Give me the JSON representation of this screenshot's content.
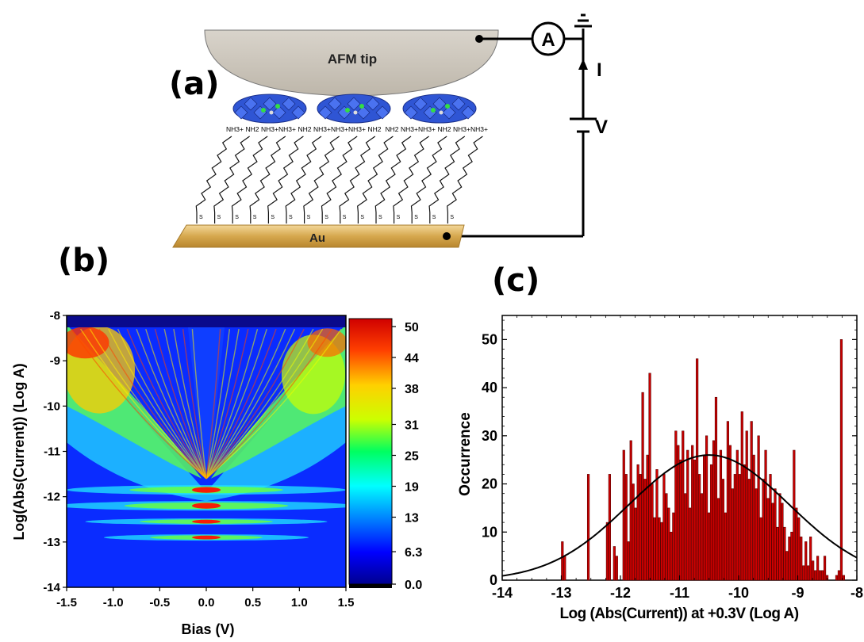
{
  "panels": {
    "a": "(a)",
    "b": "(b)",
    "c": "(c)"
  },
  "schematic": {
    "tip_label": "AFM tip",
    "ammeter_label": "A",
    "current_label": "I",
    "voltage_label": "V",
    "substrate_label": "Au",
    "thiol_label": "S",
    "amine_labels": [
      "NH3+",
      "NH2",
      "NH3+",
      "NH3+",
      "NH2",
      "NH3+",
      "NH3+",
      "NH3+",
      "NH2",
      "NH2",
      "NH3+",
      "NH3+",
      "NH2",
      "NH3+",
      "NH3+"
    ],
    "colors": {
      "tip": "#c8c2b7",
      "polyoxometalate": "#2f55d4",
      "gold": "#d6a84e"
    }
  },
  "heatmap": {
    "xlabel": "Bias (V)",
    "ylabel": "Log(Abs(Current)) (Log A)",
    "xticks": [
      "-1.5",
      "-1.0",
      "-0.5",
      "0.0",
      "0.5",
      "1.0",
      "1.5"
    ],
    "yticks": [
      "-8",
      "-9",
      "-10",
      "-11",
      "-12",
      "-13",
      "-14"
    ],
    "colorbar_ticks": [
      "50",
      "44",
      "38",
      "31",
      "25",
      "19",
      "13",
      "6.3",
      "0.0"
    ],
    "xlim": [
      -1.5,
      1.5
    ],
    "ylim": [
      -14,
      -8
    ],
    "zlim": [
      0,
      50
    ]
  },
  "chart_data": {
    "type": "bar",
    "xlabel": "Log (Abs(Current)) at +0.3V (Log A)",
    "ylabel": "Occurrence",
    "xlim": [
      -14,
      -8
    ],
    "ylim": [
      0,
      55
    ],
    "xticks": [
      "-14",
      "-13",
      "-12",
      "-11",
      "-10",
      "-9",
      "-8"
    ],
    "yticks": [
      "0",
      "10",
      "20",
      "30",
      "40",
      "50"
    ],
    "bin_width": 0.04,
    "bins": [
      [
        -12.98,
        8
      ],
      [
        -12.94,
        5
      ],
      [
        -12.54,
        22
      ],
      [
        -12.22,
        12
      ],
      [
        -12.18,
        22
      ],
      [
        -12.1,
        7
      ],
      [
        -12.06,
        5
      ],
      [
        -11.94,
        27
      ],
      [
        -11.9,
        22
      ],
      [
        -11.86,
        8
      ],
      [
        -11.82,
        29
      ],
      [
        -11.78,
        20
      ],
      [
        -11.74,
        15
      ],
      [
        -11.7,
        24
      ],
      [
        -11.66,
        22
      ],
      [
        -11.62,
        39
      ],
      [
        -11.58,
        21
      ],
      [
        -11.54,
        26
      ],
      [
        -11.5,
        43
      ],
      [
        -11.46,
        20
      ],
      [
        -11.42,
        13
      ],
      [
        -11.38,
        23
      ],
      [
        -11.34,
        13
      ],
      [
        -11.3,
        12
      ],
      [
        -11.26,
        22
      ],
      [
        -11.22,
        18
      ],
      [
        -11.18,
        15
      ],
      [
        -11.14,
        10
      ],
      [
        -11.1,
        14
      ],
      [
        -11.06,
        31
      ],
      [
        -11.02,
        28
      ],
      [
        -10.98,
        25
      ],
      [
        -10.94,
        31
      ],
      [
        -10.9,
        18
      ],
      [
        -10.86,
        27
      ],
      [
        -10.82,
        15
      ],
      [
        -10.78,
        28
      ],
      [
        -10.74,
        25
      ],
      [
        -10.7,
        46
      ],
      [
        -10.66,
        22
      ],
      [
        -10.62,
        18
      ],
      [
        -10.58,
        26
      ],
      [
        -10.54,
        30
      ],
      [
        -10.5,
        14
      ],
      [
        -10.46,
        24
      ],
      [
        -10.42,
        29
      ],
      [
        -10.38,
        38
      ],
      [
        -10.34,
        17
      ],
      [
        -10.3,
        27
      ],
      [
        -10.26,
        21
      ],
      [
        -10.22,
        14
      ],
      [
        -10.18,
        33
      ],
      [
        -10.14,
        28
      ],
      [
        -10.1,
        19
      ],
      [
        -10.06,
        22
      ],
      [
        -10.02,
        27
      ],
      [
        -9.98,
        22
      ],
      [
        -9.94,
        35
      ],
      [
        -9.9,
        24
      ],
      [
        -9.86,
        31
      ],
      [
        -9.82,
        21
      ],
      [
        -9.78,
        33
      ],
      [
        -9.74,
        26
      ],
      [
        -9.7,
        19
      ],
      [
        -9.66,
        30
      ],
      [
        -9.62,
        13
      ],
      [
        -9.58,
        21
      ],
      [
        -9.54,
        27
      ],
      [
        -9.5,
        17
      ],
      [
        -9.46,
        22
      ],
      [
        -9.42,
        16
      ],
      [
        -9.38,
        19
      ],
      [
        -9.34,
        11
      ],
      [
        -9.3,
        18
      ],
      [
        -9.26,
        16
      ],
      [
        -9.22,
        11
      ],
      [
        -9.18,
        6
      ],
      [
        -9.14,
        9
      ],
      [
        -9.1,
        10
      ],
      [
        -9.06,
        27
      ],
      [
        -9.02,
        15
      ],
      [
        -8.98,
        13
      ],
      [
        -8.94,
        9
      ],
      [
        -8.9,
        3
      ],
      [
        -8.86,
        8
      ],
      [
        -8.82,
        3
      ],
      [
        -8.78,
        9
      ],
      [
        -8.74,
        4
      ],
      [
        -8.7,
        2
      ],
      [
        -8.66,
        5
      ],
      [
        -8.62,
        2
      ],
      [
        -8.58,
        2
      ],
      [
        -8.54,
        5
      ],
      [
        -8.5,
        1
      ],
      [
        -8.34,
        1
      ],
      [
        -8.3,
        2
      ],
      [
        -8.26,
        50
      ],
      [
        -8.22,
        1
      ]
    ],
    "fit": {
      "type": "gaussian",
      "center": -10.5,
      "sigma": 1.35,
      "amplitude": 26
    },
    "colors": {
      "bar": "#cc0000",
      "bar_edge": "#5a0000",
      "fit": "#000000"
    }
  }
}
